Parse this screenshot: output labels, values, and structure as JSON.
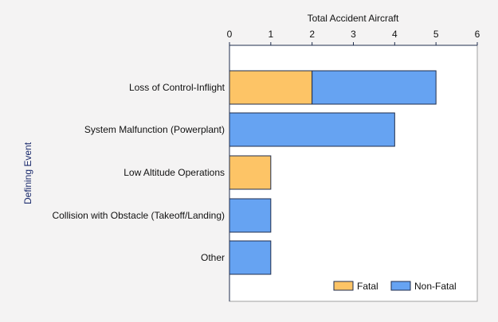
{
  "chart_data": {
    "type": "bar",
    "orientation": "horizontal",
    "stacked": true,
    "xlabel": "Total Accident Aircraft",
    "ylabel": "Defining Event",
    "xlim": [
      0,
      6
    ],
    "xticks": [
      "0",
      "1",
      "2",
      "3",
      "4",
      "5",
      "6"
    ],
    "x_axis_position": "top",
    "grid": false,
    "legend_position": "bottom-right",
    "categories": [
      "Loss of Control-Inflight",
      "System Malfunction (Powerplant)",
      "Low Altitude Operations",
      "Collision with Obstacle (Takeoff/Landing)",
      "Other"
    ],
    "series": [
      {
        "name": "Fatal",
        "color": "#fdc466",
        "values": [
          2,
          0,
          1,
          0,
          0
        ]
      },
      {
        "name": "Non-Fatal",
        "color": "#66a3f2",
        "values": [
          3,
          4,
          0,
          1,
          1
        ]
      }
    ]
  }
}
